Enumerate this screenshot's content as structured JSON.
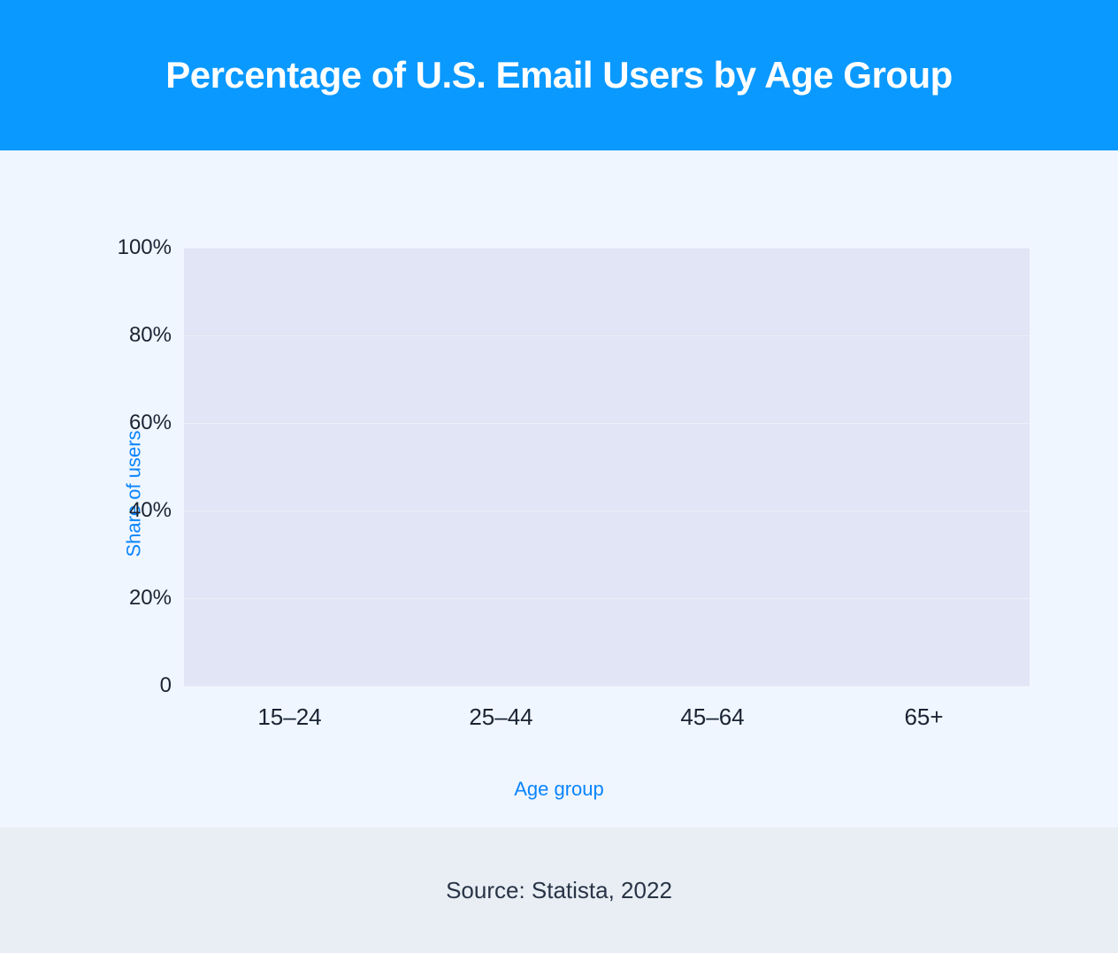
{
  "header": {
    "title": "Percentage of U.S. Email Users by Age Group",
    "bg_color": "#0a99ff",
    "title_color": "#ffffff",
    "title_fontsize": 42,
    "title_fontweight": 700
  },
  "chart": {
    "type": "bar",
    "page_bg_color": "#f0f6ff",
    "plot_bg_color": "#e2e5f5",
    "grid_color": "#eceef8",
    "tick_color": "#1a2433",
    "tick_fontsize": 24,
    "axis_label_color": "#0a84ff",
    "axis_label_fontsize": 22,
    "y_axis": {
      "label": "Share of users",
      "min": 0,
      "max": 100,
      "tick_step": 20,
      "ticks": [
        {
          "value": 0,
          "label": "0"
        },
        {
          "value": 20,
          "label": "20%"
        },
        {
          "value": 40,
          "label": "40%"
        },
        {
          "value": 60,
          "label": "60%"
        },
        {
          "value": 80,
          "label": "80%"
        },
        {
          "value": 100,
          "label": "100%"
        }
      ]
    },
    "x_axis": {
      "label": "Age group",
      "categories": [
        "15–24",
        "25–44",
        "45–64",
        "65+"
      ]
    },
    "series": {
      "values": [
        null,
        null,
        null,
        null
      ],
      "note": "No bars are rendered in the source image; plot area is empty.",
      "bar_color": "#0a99ff"
    }
  },
  "footer": {
    "text": "Source: Statista, 2022",
    "bg_color": "#e9eef5",
    "text_color": "#283445",
    "fontsize": 26
  }
}
